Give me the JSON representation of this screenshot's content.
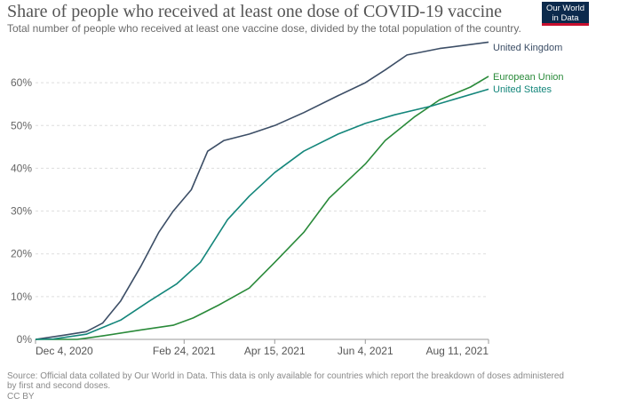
{
  "header": {
    "title": "Share of people who received at least one dose of COVID-19 vaccine",
    "subtitle": "Total number of people who received at least one vaccine dose, divided by the total population of the country.",
    "logo_line1": "Our World",
    "logo_line2": "in Data"
  },
  "footer": {
    "source": "Source: Official data collated by Our World in Data. This data is only available for countries which report the breakdown of doses administered by first and second doses.",
    "license": "CC BY"
  },
  "colors": {
    "United Kingdom": "#3c4e66",
    "European Union": "#2a8a3a",
    "United States": "#14867b",
    "gridline": "#dddddd",
    "axis": "#999999"
  },
  "chart_data": {
    "type": "line",
    "title": "Share of people who received at least one dose of COVID-19 vaccine",
    "xlabel": "",
    "ylabel": "",
    "x_ticks": [
      "Dec 4, 2020",
      "Feb 24, 2021",
      "Apr 15, 2021",
      "Jun 4, 2021",
      "Aug 11, 2021"
    ],
    "y_ticks": [
      "0%",
      "10%",
      "20%",
      "30%",
      "40%",
      "50%",
      "60%"
    ],
    "ylim": [
      0,
      70
    ],
    "xlim": [
      "2020-12-04",
      "2021-08-11"
    ],
    "grid": true,
    "legend": "series labels at right end of lines",
    "series": [
      {
        "name": "United Kingdom",
        "points": [
          [
            "2020-12-04",
            0
          ],
          [
            "2020-12-20",
            1
          ],
          [
            "2021-01-01",
            1.8
          ],
          [
            "2021-01-10",
            3.8
          ],
          [
            "2021-01-20",
            9
          ],
          [
            "2021-01-31",
            17
          ],
          [
            "2021-02-10",
            25
          ],
          [
            "2021-02-18",
            30
          ],
          [
            "2021-02-28",
            35
          ],
          [
            "2021-03-09",
            44
          ],
          [
            "2021-03-18",
            46.5
          ],
          [
            "2021-04-01",
            48
          ],
          [
            "2021-04-15",
            50
          ],
          [
            "2021-05-01",
            53
          ],
          [
            "2021-05-20",
            57
          ],
          [
            "2021-06-04",
            60
          ],
          [
            "2021-06-15",
            63
          ],
          [
            "2021-06-27",
            66.5
          ],
          [
            "2021-07-15",
            68
          ],
          [
            "2021-08-11",
            69.5
          ]
        ]
      },
      {
        "name": "European Union",
        "points": [
          [
            "2020-12-04",
            0
          ],
          [
            "2020-12-27",
            0
          ],
          [
            "2021-01-10",
            0.8
          ],
          [
            "2021-01-31",
            2.2
          ],
          [
            "2021-02-18",
            3.3
          ],
          [
            "2021-03-01",
            5
          ],
          [
            "2021-03-15",
            8
          ],
          [
            "2021-04-01",
            12
          ],
          [
            "2021-04-15",
            18
          ],
          [
            "2021-05-01",
            25
          ],
          [
            "2021-05-15",
            33
          ],
          [
            "2021-06-04",
            41
          ],
          [
            "2021-06-15",
            46.5
          ],
          [
            "2021-07-01",
            52
          ],
          [
            "2021-07-15",
            56
          ],
          [
            "2021-08-01",
            59
          ],
          [
            "2021-08-11",
            61.5
          ]
        ]
      },
      {
        "name": "United States",
        "points": [
          [
            "2020-12-04",
            0
          ],
          [
            "2020-12-14",
            0.1
          ],
          [
            "2021-01-01",
            1.2
          ],
          [
            "2021-01-20",
            4.5
          ],
          [
            "2021-02-05",
            9
          ],
          [
            "2021-02-20",
            13
          ],
          [
            "2021-03-05",
            18
          ],
          [
            "2021-03-20",
            28
          ],
          [
            "2021-04-01",
            33.5
          ],
          [
            "2021-04-15",
            39
          ],
          [
            "2021-05-01",
            44
          ],
          [
            "2021-05-20",
            48
          ],
          [
            "2021-06-04",
            50.5
          ],
          [
            "2021-06-20",
            52.5
          ],
          [
            "2021-07-10",
            54.5
          ],
          [
            "2021-08-11",
            58.5
          ]
        ]
      }
    ]
  }
}
